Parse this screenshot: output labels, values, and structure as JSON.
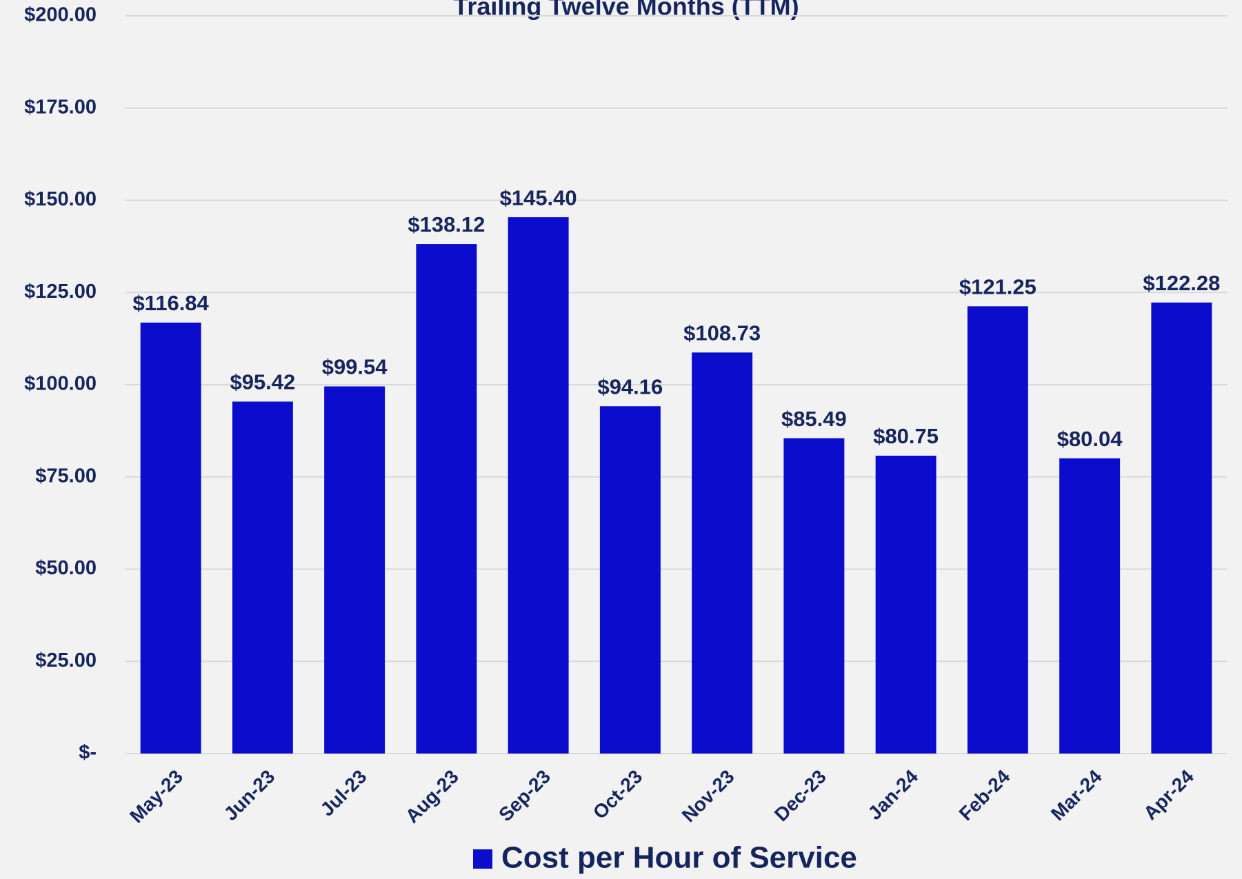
{
  "chart_data": {
    "type": "bar",
    "title": "Trailing Twelve Months (TTM)",
    "categories": [
      "May-23",
      "Jun-23",
      "Jul-23",
      "Aug-23",
      "Sep-23",
      "Oct-23",
      "Nov-23",
      "Dec-23",
      "Jan-24",
      "Feb-24",
      "Mar-24",
      "Apr-24"
    ],
    "series": [
      {
        "name": "Cost per Hour of Service",
        "color": "#0c0ccc",
        "values": [
          116.84,
          95.42,
          99.54,
          138.12,
          145.4,
          94.16,
          108.73,
          85.49,
          80.75,
          121.25,
          80.04,
          122.28
        ],
        "value_labels": [
          "$116.84",
          "$95.42",
          "$99.54",
          "$138.12",
          "$145.40",
          "$94.16",
          "$108.73",
          "$85.49",
          "$80.75",
          "$121.25",
          "$80.04",
          "$122.28"
        ]
      }
    ],
    "ylim": [
      0,
      200
    ],
    "yticks": [
      {
        "value": 0,
        "label": "$-"
      },
      {
        "value": 25,
        "label": "$25.00"
      },
      {
        "value": 50,
        "label": "$50.00"
      },
      {
        "value": 75,
        "label": "$75.00"
      },
      {
        "value": 100,
        "label": "$100.00"
      },
      {
        "value": 125,
        "label": "$125.00"
      },
      {
        "value": 150,
        "label": "$150.00"
      },
      {
        "value": 175,
        "label": "$175.00"
      },
      {
        "value": 200,
        "label": "$200.00"
      }
    ],
    "grid": true,
    "legend": "bottom"
  }
}
